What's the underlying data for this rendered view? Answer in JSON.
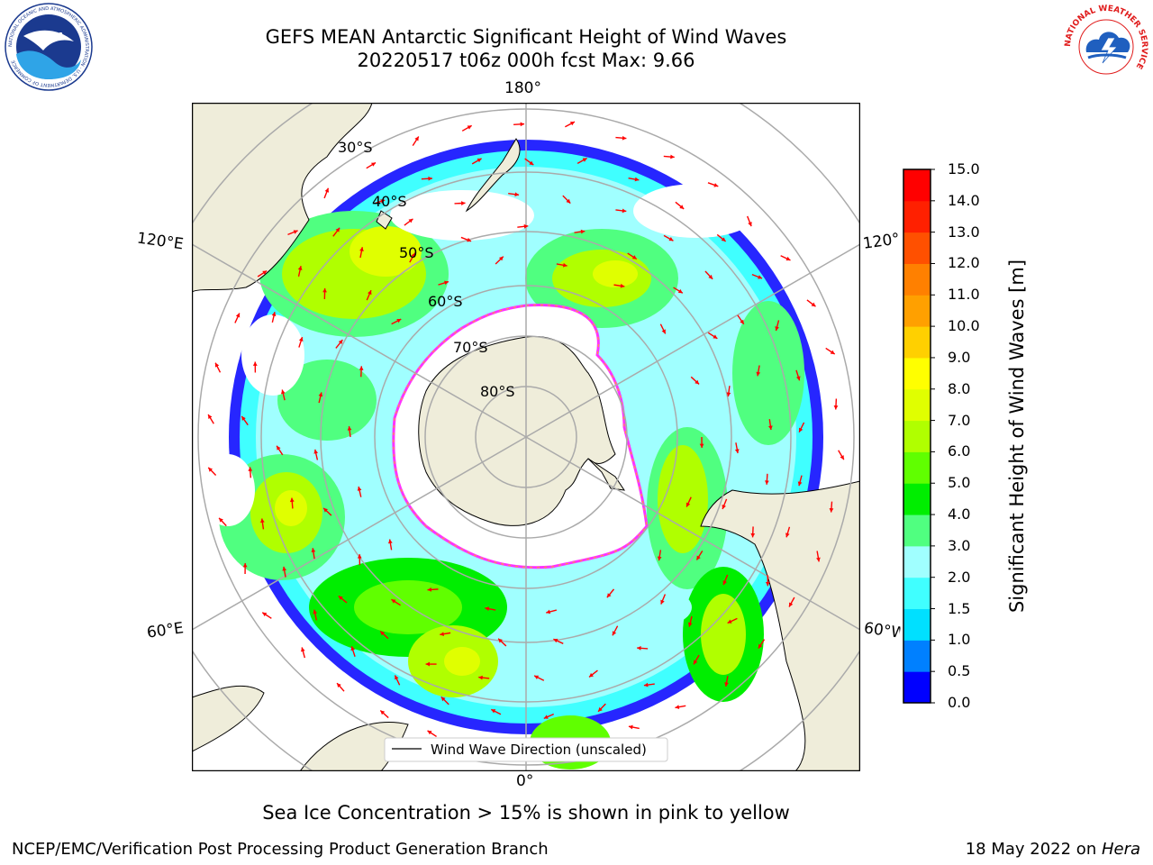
{
  "title": {
    "line1": "GEFS MEAN Antarctic Significant Height of Wind Waves",
    "line2": "20220517 t06z 000h fcst   Max: 9.66"
  },
  "map": {
    "projection": "south-polar-stereographic",
    "lon_labels": {
      "top": "180°",
      "bottom": "0°",
      "left_upper": "120°E",
      "left_lower": "60°E",
      "right_upper": "120°",
      "right_lower": "60°W"
    },
    "lat_labels": [
      "30°S",
      "40°S",
      "50°S",
      "60°S",
      "70°S",
      "80°S"
    ],
    "legend": "Wind Wave Direction (unscaled)",
    "land_color": "#efedda",
    "ice_edge_colors": [
      "#ff33ff",
      "#ffb020"
    ],
    "arrow_color": "#ff0000"
  },
  "colorbar": {
    "title": "Significant Height of Wind Waves [m]",
    "ticks": [
      "0.0",
      "0.5",
      "1.0",
      "1.5",
      "2.0",
      "3.0",
      "4.0",
      "5.0",
      "6.0",
      "7.0",
      "8.0",
      "9.0",
      "10.0",
      "11.0",
      "12.0",
      "13.0",
      "14.0",
      "15.0"
    ],
    "colors": [
      "#0000ff",
      "#0080ff",
      "#00e0ff",
      "#40ffff",
      "#a0ffff",
      "#50ff80",
      "#00ee00",
      "#60ff00",
      "#b0ff00",
      "#e0ff00",
      "#ffff00",
      "#ffd000",
      "#ffa000",
      "#ff8000",
      "#ff5000",
      "#ff2000",
      "#ff0000"
    ]
  },
  "subtitle": "Sea Ice Concentration > 15% is shown in pink to yellow",
  "footer": {
    "left": "NCEP/EMC/Verification Post Processing Product Generation Branch",
    "date": "18 May 2022 on ",
    "machine": "Hera"
  },
  "logos": {
    "noaa_text": "NOAA",
    "noaa_ring": "NATIONAL OCEANIC AND ATMOSPHERIC ADMINISTRATION · U.S. DEPARTMENT OF COMMERCE",
    "nws_ring": "NATIONAL WEATHER SERVICE"
  }
}
